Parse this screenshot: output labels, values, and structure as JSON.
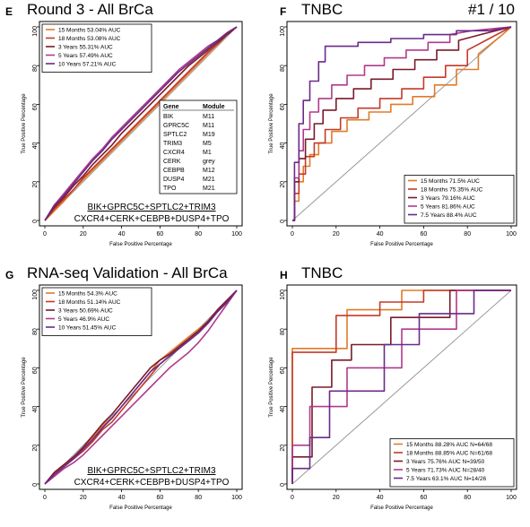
{
  "chart_data": [
    {
      "panel_label": "E",
      "title": "Round 3 - All BrCa",
      "tag": "",
      "type": "line",
      "xlabel": "False Positive Percentage",
      "ylabel": "True Positive Percentage",
      "xlim": [
        0,
        100
      ],
      "ylim": [
        0,
        100
      ],
      "xticks": [
        "0",
        "20",
        "40",
        "60",
        "80",
        "100"
      ],
      "yticks": [
        "0",
        "20",
        "40",
        "60",
        "80",
        "100"
      ],
      "legend_position": "top-left",
      "series": [
        {
          "name": "15 Months 53.04% AUC",
          "color": "#e07b2a",
          "x": [
            0,
            5,
            10,
            15,
            20,
            25,
            30,
            35,
            40,
            45,
            50,
            55,
            60,
            65,
            70,
            75,
            80,
            85,
            90,
            95,
            100
          ],
          "y": [
            0,
            5,
            10,
            16,
            21,
            26,
            31,
            36,
            41,
            46,
            51,
            56,
            61,
            66,
            71,
            76,
            81,
            86,
            91,
            96,
            100
          ]
        },
        {
          "name": "18 Months 53.08% AUC",
          "color": "#c43a2a",
          "x": [
            0,
            5,
            10,
            15,
            20,
            25,
            30,
            35,
            40,
            45,
            50,
            55,
            60,
            65,
            70,
            75,
            80,
            85,
            90,
            95,
            100
          ],
          "y": [
            0,
            6,
            11,
            16,
            22,
            27,
            32,
            37,
            42,
            47,
            52,
            57,
            62,
            67,
            72,
            77,
            82,
            87,
            91,
            96,
            100
          ]
        },
        {
          "name": "3 Years 55.31% AUC",
          "color": "#7a1a2a",
          "x": [
            0,
            5,
            10,
            15,
            20,
            25,
            30,
            35,
            40,
            45,
            50,
            55,
            60,
            65,
            70,
            75,
            80,
            85,
            90,
            95,
            100
          ],
          "y": [
            0,
            7,
            12,
            18,
            23,
            29,
            34,
            39,
            45,
            50,
            55,
            60,
            65,
            70,
            75,
            80,
            84,
            88,
            92,
            96,
            100
          ]
        },
        {
          "name": "5 Years 57.49% AUC",
          "color": "#b03a8a",
          "x": [
            0,
            5,
            10,
            15,
            20,
            25,
            30,
            35,
            40,
            45,
            50,
            55,
            60,
            65,
            70,
            75,
            80,
            85,
            90,
            95,
            100
          ],
          "y": [
            0,
            8,
            14,
            20,
            26,
            32,
            37,
            43,
            48,
            53,
            58,
            63,
            68,
            73,
            78,
            82,
            86,
            90,
            93,
            97,
            100
          ]
        },
        {
          "name": "10 Years 57.21% AUC",
          "color": "#6a2a8a",
          "x": [
            0,
            5,
            10,
            15,
            20,
            25,
            30,
            35,
            40,
            45,
            50,
            55,
            60,
            65,
            70,
            75,
            80,
            85,
            90,
            95,
            100
          ],
          "y": [
            0,
            8,
            13,
            19,
            25,
            31,
            36,
            42,
            47,
            52,
            57,
            62,
            67,
            72,
            77,
            81,
            85,
            89,
            93,
            97,
            100
          ]
        }
      ],
      "table": {
        "headers": [
          "Gene",
          "Module"
        ],
        "rows": [
          [
            "BIK",
            "M11"
          ],
          [
            "GPRC5C",
            "M11"
          ],
          [
            "SPTLC2",
            "M19"
          ],
          [
            "TRIM3",
            "M5"
          ],
          [
            "CXCR4",
            "M1"
          ],
          [
            "CERK",
            "grey"
          ],
          [
            "CEBPB",
            "M12"
          ],
          [
            "DUSP4",
            "M21"
          ],
          [
            "TPO",
            "M21"
          ]
        ]
      },
      "formula_line1": "BIK+GPRC5C+SPTLC2+TRIM3",
      "formula_line2": "CXCR4+CERK+CEBPB+DUSP4+TPO"
    },
    {
      "panel_label": "F",
      "title": "TNBC",
      "tag": "#1 / 10",
      "type": "line",
      "xlabel": "False Positive Percentage",
      "ylabel": "True Positive Percentage",
      "xlim": [
        0,
        100
      ],
      "ylim": [
        0,
        100
      ],
      "xticks": [
        "0",
        "20",
        "40",
        "60",
        "80",
        "100"
      ],
      "yticks": [
        "0",
        "20",
        "40",
        "60",
        "80",
        "100"
      ],
      "legend_position": "bottom-right",
      "series": [
        {
          "name": "15 Months 71.5% AUC",
          "color": "#e07b2a",
          "x": [
            0,
            1,
            1,
            3,
            3,
            5,
            5,
            8,
            8,
            12,
            12,
            18,
            18,
            25,
            25,
            35,
            35,
            45,
            45,
            55,
            55,
            65,
            65,
            75,
            75,
            85,
            85,
            95,
            100
          ],
          "y": [
            0,
            0,
            10,
            10,
            20,
            20,
            28,
            28,
            34,
            34,
            40,
            40,
            46,
            46,
            52,
            52,
            56,
            56,
            60,
            60,
            64,
            64,
            70,
            70,
            78,
            78,
            86,
            95,
            100
          ]
        },
        {
          "name": "18 Months 75.35% AUC",
          "color": "#c43a2a",
          "x": [
            0,
            1,
            1,
            3,
            3,
            6,
            6,
            10,
            10,
            15,
            15,
            22,
            22,
            30,
            30,
            40,
            40,
            50,
            50,
            60,
            60,
            70,
            70,
            80,
            80,
            90,
            100
          ],
          "y": [
            0,
            0,
            14,
            14,
            24,
            24,
            33,
            33,
            40,
            40,
            47,
            47,
            53,
            53,
            58,
            58,
            63,
            63,
            68,
            68,
            74,
            74,
            80,
            80,
            88,
            94,
            100
          ]
        },
        {
          "name": "3 Years 79.16% AUC",
          "color": "#7a1a2a",
          "x": [
            0,
            1,
            1,
            3,
            3,
            6,
            6,
            10,
            10,
            14,
            14,
            20,
            20,
            28,
            28,
            36,
            36,
            46,
            46,
            56,
            56,
            66,
            66,
            76,
            76,
            86,
            100
          ],
          "y": [
            0,
            0,
            20,
            20,
            32,
            32,
            42,
            42,
            50,
            50,
            57,
            57,
            63,
            63,
            68,
            68,
            73,
            73,
            78,
            78,
            83,
            83,
            88,
            88,
            93,
            96,
            100
          ]
        },
        {
          "name": "5 Years 81.86% AUC",
          "color": "#b03a8a",
          "x": [
            0,
            1,
            1,
            3,
            3,
            5,
            5,
            8,
            8,
            12,
            12,
            18,
            18,
            25,
            25,
            33,
            33,
            42,
            42,
            52,
            52,
            62,
            62,
            72,
            72,
            82,
            100
          ],
          "y": [
            0,
            0,
            22,
            22,
            36,
            36,
            47,
            47,
            56,
            56,
            63,
            63,
            70,
            70,
            75,
            75,
            80,
            80,
            84,
            84,
            88,
            88,
            92,
            92,
            96,
            98,
            100
          ]
        },
        {
          "name": "7.5 Years 88.4% AUC",
          "color": "#6a2a8a",
          "x": [
            0,
            1,
            1,
            3,
            3,
            5,
            5,
            8,
            8,
            12,
            12,
            15,
            15,
            30,
            30,
            45,
            45,
            60,
            60,
            75,
            75,
            90,
            100
          ],
          "y": [
            0,
            0,
            30,
            30,
            50,
            50,
            62,
            62,
            72,
            72,
            82,
            82,
            90,
            90,
            92,
            92,
            94,
            94,
            96,
            96,
            98,
            98,
            100
          ]
        }
      ]
    },
    {
      "panel_label": "G",
      "title": "RNA-seq Validation - All BrCa",
      "tag": "",
      "type": "line",
      "xlabel": "False Positive Percentage",
      "ylabel": "True Positive Percentage",
      "xlim": [
        0,
        100
      ],
      "ylim": [
        0,
        100
      ],
      "xticks": [
        "0",
        "20",
        "40",
        "60",
        "80",
        "100"
      ],
      "yticks": [
        "0",
        "20",
        "40",
        "60",
        "80",
        "100"
      ],
      "legend_position": "top-left",
      "series": [
        {
          "name": "15 Months 54.3% AUC",
          "color": "#e07b2a",
          "x": [
            0,
            5,
            10,
            15,
            20,
            25,
            30,
            35,
            40,
            45,
            50,
            55,
            60,
            65,
            70,
            75,
            80,
            85,
            90,
            95,
            100
          ],
          "y": [
            0,
            6,
            10,
            14,
            18,
            24,
            30,
            34,
            40,
            46,
            52,
            58,
            64,
            68,
            72,
            76,
            80,
            84,
            90,
            95,
            100
          ]
        },
        {
          "name": "18 Months 51.14% AUC",
          "color": "#c43a2a",
          "x": [
            0,
            5,
            10,
            15,
            20,
            25,
            30,
            35,
            40,
            45,
            50,
            55,
            60,
            65,
            70,
            75,
            80,
            85,
            90,
            95,
            100
          ],
          "y": [
            0,
            5,
            9,
            13,
            17,
            22,
            28,
            32,
            38,
            44,
            50,
            56,
            62,
            66,
            70,
            74,
            78,
            83,
            89,
            94,
            100
          ]
        },
        {
          "name": "3 Years 50.69% AUC",
          "color": "#7a1a2a",
          "x": [
            0,
            5,
            10,
            15,
            20,
            25,
            30,
            35,
            40,
            45,
            50,
            55,
            60,
            65,
            70,
            75,
            80,
            85,
            90,
            95,
            100
          ],
          "y": [
            0,
            6,
            10,
            14,
            19,
            25,
            31,
            36,
            42,
            48,
            54,
            60,
            64,
            67,
            71,
            75,
            79,
            84,
            90,
            95,
            100
          ]
        },
        {
          "name": "5 Years 46.9% AUC",
          "color": "#b03a8a",
          "x": [
            0,
            5,
            10,
            15,
            20,
            25,
            30,
            35,
            40,
            45,
            50,
            55,
            60,
            65,
            70,
            75,
            80,
            85,
            90,
            95,
            100
          ],
          "y": [
            0,
            4,
            8,
            11,
            15,
            20,
            25,
            30,
            35,
            40,
            45,
            50,
            55,
            60,
            64,
            68,
            73,
            79,
            86,
            93,
            100
          ]
        },
        {
          "name": "10 Years 51.45% AUC",
          "color": "#6a2a8a",
          "x": [
            0,
            5,
            10,
            15,
            20,
            25,
            30,
            35,
            40,
            45,
            50,
            55,
            60,
            65,
            70,
            75,
            80,
            85,
            90,
            95,
            100
          ],
          "y": [
            0,
            5,
            9,
            13,
            18,
            23,
            29,
            34,
            40,
            46,
            52,
            58,
            62,
            66,
            70,
            74,
            78,
            83,
            89,
            94,
            100
          ]
        }
      ],
      "formula_line1": "BIK+GPRC5C+SPTLC2+TRIM3",
      "formula_line2": "CXCR4+CERK+CEBPB+DUSP4+TPO"
    },
    {
      "panel_label": "H",
      "title": "TNBC",
      "tag": "",
      "type": "line",
      "xlabel": "False Positive Percentage",
      "ylabel": "True Positive Percentage",
      "xlim": [
        0,
        100
      ],
      "ylim": [
        0,
        100
      ],
      "xticks": [
        "0",
        "20",
        "40",
        "60",
        "80",
        "100"
      ],
      "yticks": [
        "0",
        "20",
        "40",
        "60",
        "80",
        "100"
      ],
      "legend_position": "bottom-right",
      "series": [
        {
          "name": "15 Months 88.28% AUC N=64/68",
          "color": "#e07b2a",
          "x": [
            0,
            0,
            25,
            25,
            50,
            50,
            100
          ],
          "y": [
            0,
            70,
            70,
            90,
            90,
            100,
            100
          ]
        },
        {
          "name": "18 Months 88.85% AUC N=61/68",
          "color": "#c43a2a",
          "x": [
            0,
            0,
            20,
            20,
            40,
            40,
            60,
            60,
            100
          ],
          "y": [
            0,
            68,
            68,
            87,
            87,
            94,
            94,
            100,
            100
          ]
        },
        {
          "name": "3 Years 75.76% AUC N=39/50",
          "color": "#7a1a2a",
          "x": [
            0,
            0,
            9,
            9,
            18,
            18,
            27,
            27,
            45,
            45,
            72,
            72,
            100
          ],
          "y": [
            0,
            14,
            14,
            50,
            50,
            64,
            64,
            72,
            72,
            86,
            86,
            100,
            100
          ]
        },
        {
          "name": "5 Years 71.73% AUC N=28/40",
          "color": "#b03a8a",
          "x": [
            0,
            0,
            8,
            8,
            25,
            25,
            50,
            50,
            75,
            75,
            100
          ],
          "y": [
            0,
            20,
            20,
            40,
            40,
            60,
            60,
            80,
            80,
            100,
            100
          ]
        },
        {
          "name": "7.5 Years 63.1% AUC N=14/26",
          "color": "#6a2a8a",
          "x": [
            0,
            0,
            8,
            8,
            17,
            17,
            42,
            42,
            58,
            58,
            83,
            83,
            100
          ],
          "y": [
            0,
            8,
            8,
            24,
            24,
            48,
            48,
            72,
            72,
            88,
            88,
            100,
            100
          ]
        }
      ]
    }
  ]
}
